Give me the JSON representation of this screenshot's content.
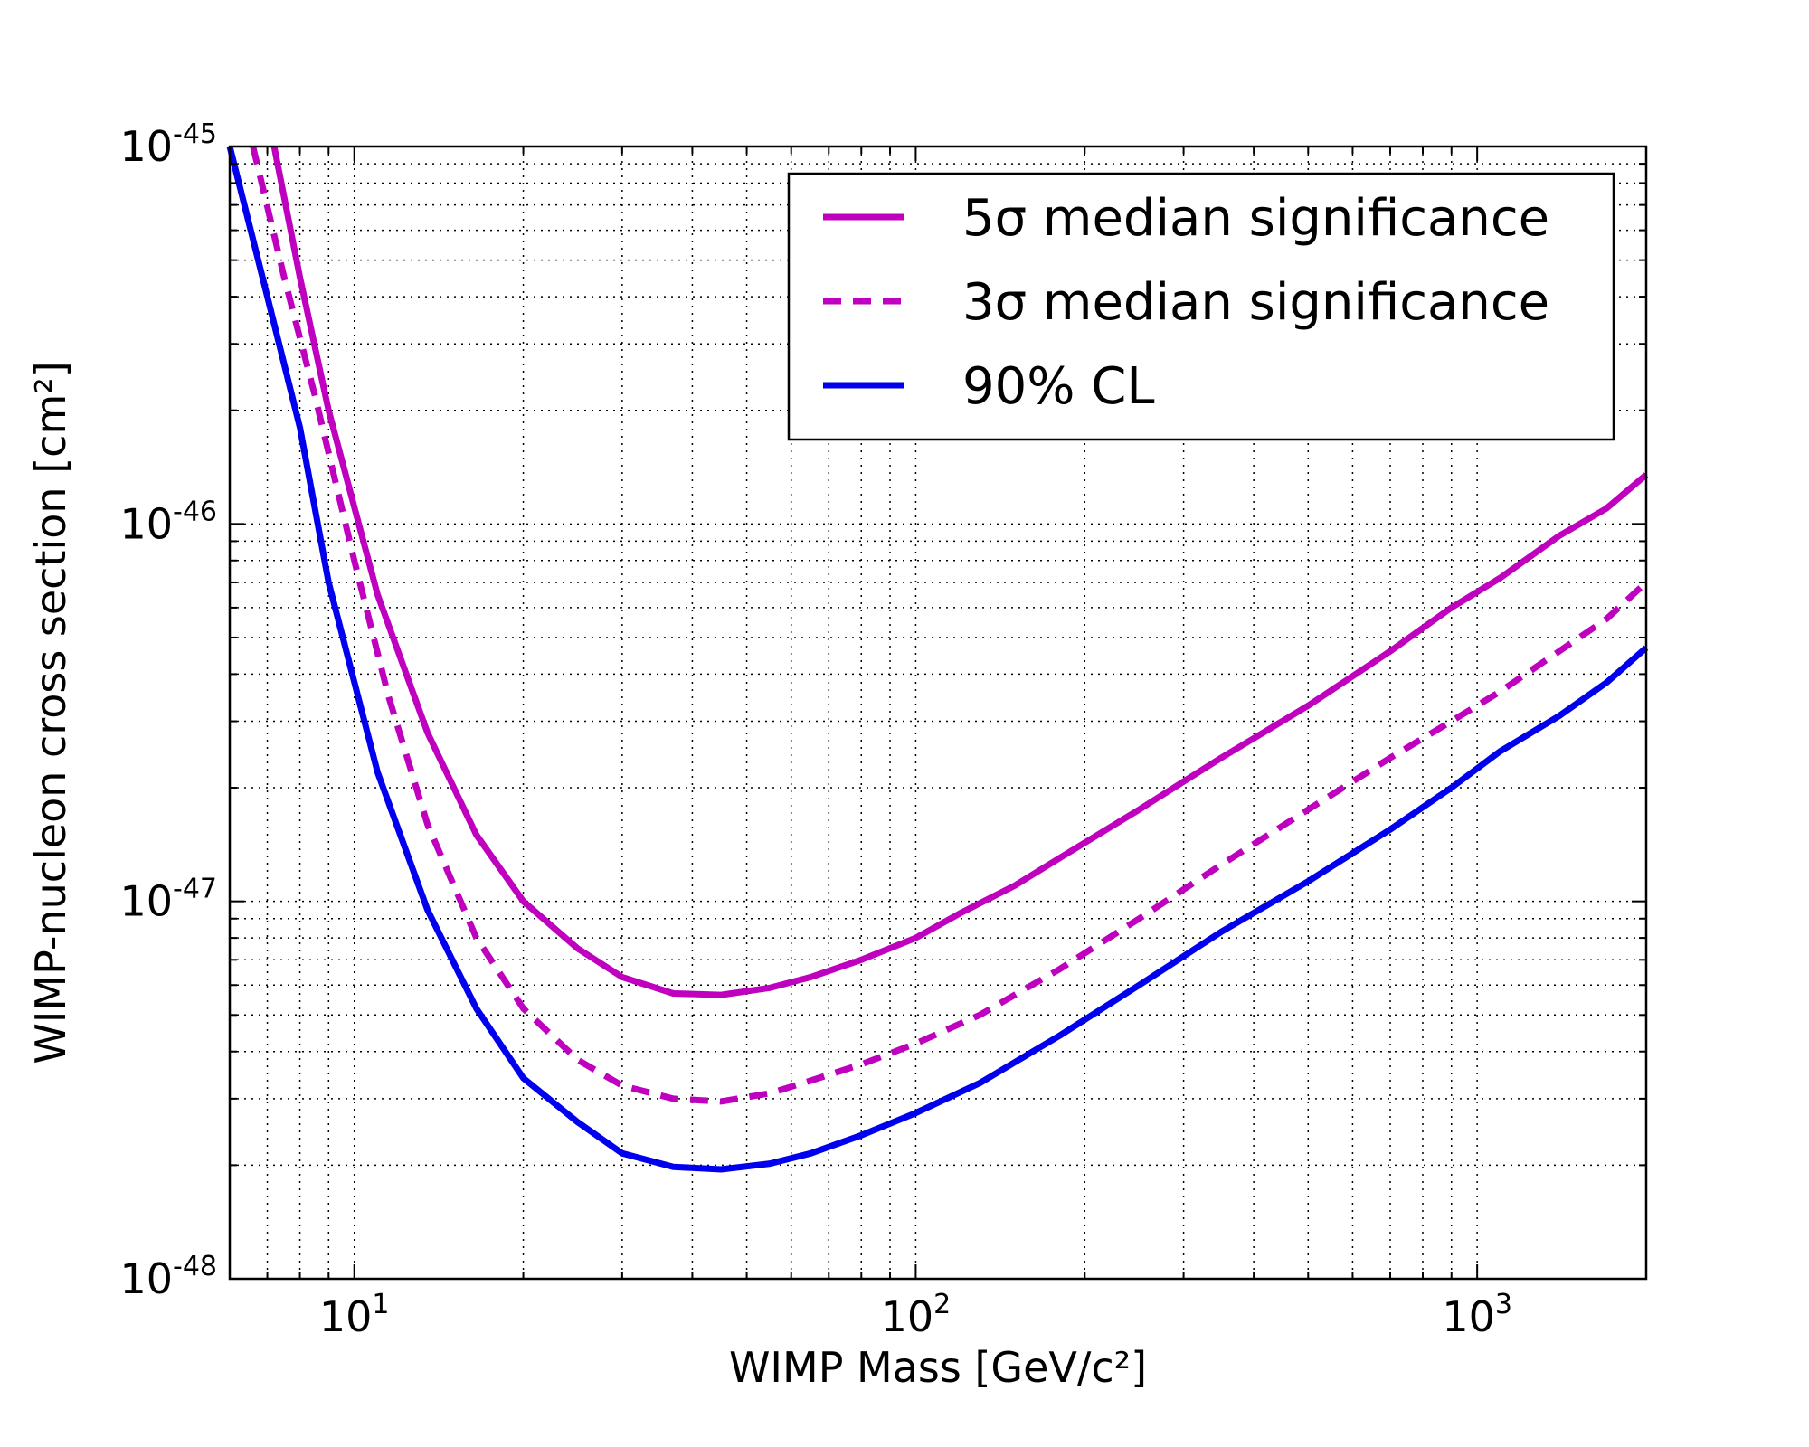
{
  "chart_data": {
    "type": "line",
    "xlabel": "WIMP Mass [GeV/c²]",
    "ylabel": "WIMP-nucleon cross section [cm²]",
    "xscale": "log",
    "yscale": "log",
    "xlim": [
      6,
      2000
    ],
    "ylim": [
      1e-48,
      1e-45
    ],
    "grid": true,
    "legend_position": "top-right",
    "x_ticks": [
      {
        "value": 10,
        "base": "10",
        "exp": "1"
      },
      {
        "value": 100,
        "base": "10",
        "exp": "2"
      },
      {
        "value": 1000,
        "base": "10",
        "exp": "3"
      }
    ],
    "y_ticks": [
      {
        "value": 1e-48,
        "base": "10",
        "exp": "-48"
      },
      {
        "value": 1e-47,
        "base": "10",
        "exp": "-47"
      },
      {
        "value": 1e-46,
        "base": "10",
        "exp": "-46"
      },
      {
        "value": 1e-45,
        "base": "10",
        "exp": "-45"
      }
    ],
    "series": [
      {
        "name": "5σ median significance",
        "color": "#bf00bf",
        "style": "solid",
        "points": [
          [
            7.2,
            1e-45
          ],
          [
            8.0,
            4.5e-46
          ],
          [
            9.0,
            2e-46
          ],
          [
            11,
            6.5e-47
          ],
          [
            13.5,
            2.8e-47
          ],
          [
            16.5,
            1.5e-47
          ],
          [
            20,
            1e-47
          ],
          [
            25,
            7.5e-48
          ],
          [
            30,
            6.3e-48
          ],
          [
            37,
            5.7e-48
          ],
          [
            45,
            5.65e-48
          ],
          [
            55,
            5.9e-48
          ],
          [
            65,
            6.3e-48
          ],
          [
            80,
            7e-48
          ],
          [
            100,
            8e-48
          ],
          [
            120,
            9.3e-48
          ],
          [
            150,
            1.1e-47
          ],
          [
            180,
            1.3e-47
          ],
          [
            250,
            1.75e-47
          ],
          [
            350,
            2.4e-47
          ],
          [
            500,
            3.3e-47
          ],
          [
            700,
            4.6e-47
          ],
          [
            900,
            6e-47
          ],
          [
            1100,
            7.2e-47
          ],
          [
            1400,
            9.3e-47
          ],
          [
            1700,
            1.1e-46
          ],
          [
            2000,
            1.35e-46
          ]
        ]
      },
      {
        "name": "3σ median significance",
        "color": "#bf00bf",
        "style": "dashed",
        "points": [
          [
            6.6,
            1e-45
          ],
          [
            7.5,
            4.5e-46
          ],
          [
            8.5,
            2.2e-46
          ],
          [
            10,
            8e-47
          ],
          [
            11.5,
            3.5e-47
          ],
          [
            13.5,
            1.6e-47
          ],
          [
            16.5,
            8e-48
          ],
          [
            20,
            5.2e-48
          ],
          [
            25,
            3.8e-48
          ],
          [
            30,
            3.25e-48
          ],
          [
            37,
            3e-48
          ],
          [
            45,
            2.95e-48
          ],
          [
            55,
            3.1e-48
          ],
          [
            65,
            3.35e-48
          ],
          [
            80,
            3.7e-48
          ],
          [
            100,
            4.2e-48
          ],
          [
            130,
            5e-48
          ],
          [
            180,
            6.6e-48
          ],
          [
            250,
            9e-48
          ],
          [
            350,
            1.25e-47
          ],
          [
            500,
            1.75e-47
          ],
          [
            700,
            2.4e-47
          ],
          [
            900,
            3e-47
          ],
          [
            1100,
            3.6e-47
          ],
          [
            1400,
            4.6e-47
          ],
          [
            1700,
            5.6e-47
          ],
          [
            2000,
            7e-47
          ]
        ]
      },
      {
        "name": "90% CL",
        "color": "#0000ee",
        "style": "solid",
        "points": [
          [
            6.0,
            1e-45
          ],
          [
            7.0,
            4e-46
          ],
          [
            8.0,
            1.8e-46
          ],
          [
            9.0,
            7e-47
          ],
          [
            11,
            2.2e-47
          ],
          [
            13.5,
            9.5e-48
          ],
          [
            16.5,
            5.2e-48
          ],
          [
            20,
            3.4e-48
          ],
          [
            25,
            2.6e-48
          ],
          [
            30,
            2.15e-48
          ],
          [
            37,
            1.98e-48
          ],
          [
            45,
            1.95e-48
          ],
          [
            55,
            2.02e-48
          ],
          [
            65,
            2.15e-48
          ],
          [
            80,
            2.4e-48
          ],
          [
            100,
            2.75e-48
          ],
          [
            130,
            3.3e-48
          ],
          [
            180,
            4.4e-48
          ],
          [
            250,
            6e-48
          ],
          [
            350,
            8.3e-48
          ],
          [
            500,
            1.13e-47
          ],
          [
            700,
            1.55e-47
          ],
          [
            900,
            2e-47
          ],
          [
            1100,
            2.5e-47
          ],
          [
            1400,
            3.1e-47
          ],
          [
            1700,
            3.8e-47
          ],
          [
            2000,
            4.7e-47
          ]
        ]
      }
    ]
  }
}
